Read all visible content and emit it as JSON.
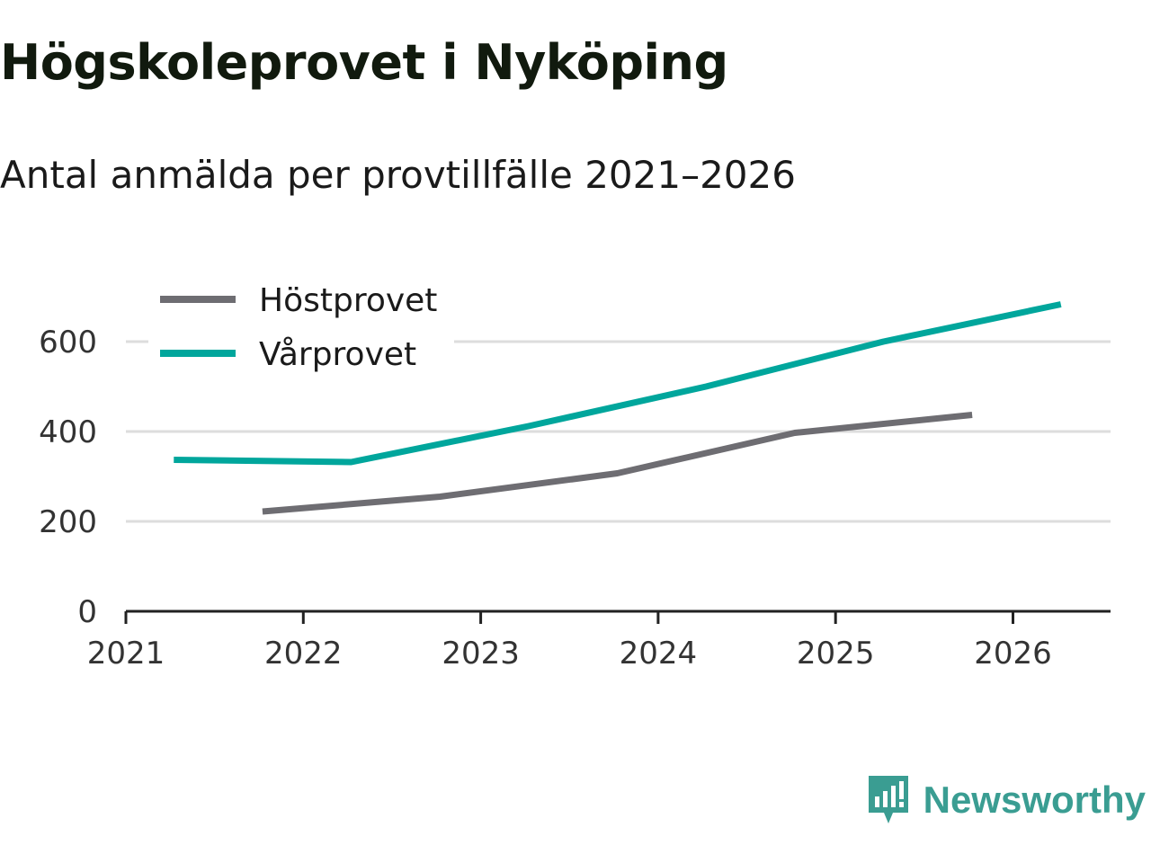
{
  "title": "Högskoleprovet i Nyköping",
  "subtitle": "Antal anmälda per provtillfälle 2021–2026",
  "brand": "Newsworthy",
  "colors": {
    "host": "#6e6d72",
    "var": "#00a69c",
    "grid": "#dddddd",
    "axis": "#222222"
  },
  "chart_data": {
    "type": "line",
    "title": "Högskoleprovet i Nyköping",
    "subtitle": "Antal anmälda per provtillfälle 2021–2026",
    "xlabel": "",
    "ylabel": "",
    "xlim": [
      2021,
      2026.55
    ],
    "ylim": [
      0,
      700
    ],
    "yticks": [
      0,
      200,
      400,
      600
    ],
    "xticks": [
      2021,
      2022,
      2023,
      2024,
      2025,
      2026
    ],
    "xtick_labels": [
      "2021",
      "2022",
      "2023",
      "2024",
      "2025",
      "2026"
    ],
    "ytick_labels": [
      "0",
      "200",
      "400",
      "600"
    ],
    "legend_position": "top-left",
    "series": [
      {
        "name": "Höstprovet",
        "color": "#6e6d72",
        "x": [
          2021.77,
          2022.77,
          2023.77,
          2024.77,
          2025.77
        ],
        "y": [
          222,
          255,
          307,
          397,
          437
        ]
      },
      {
        "name": "Vårprovet",
        "color": "#00a69c",
        "x": [
          2021.27,
          2022.27,
          2023.27,
          2024.27,
          2025.27,
          2026.27
        ],
        "y": [
          337,
          332,
          412,
          500,
          600,
          683
        ]
      }
    ]
  }
}
